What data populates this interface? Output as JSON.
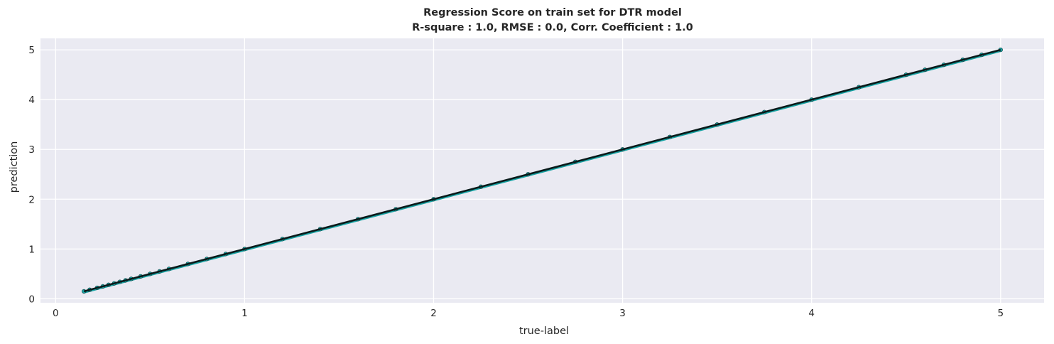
{
  "chart_data": {
    "type": "scatter",
    "title": "Regression Score on train set for DTR model",
    "subtitle": "R-square : 1.0,   RMSE : 0.0,   Corr. Coefficient : 1.0",
    "xlabel": "true-label",
    "ylabel": "prediction",
    "xlim": [
      -0.08,
      5.23
    ],
    "ylim": [
      -0.08,
      5.23
    ],
    "xticks": [
      "0",
      "1",
      "2",
      "3",
      "4",
      "5"
    ],
    "yticks": [
      "0",
      "1",
      "2",
      "3",
      "4",
      "5"
    ],
    "grid": true,
    "series": [
      {
        "kind": "points",
        "color": "#17a2a2",
        "x": [
          0.15,
          0.18,
          0.22,
          0.25,
          0.28,
          0.31,
          0.34,
          0.37,
          0.4,
          0.45,
          0.5,
          0.55,
          0.6,
          0.7,
          0.8,
          0.9,
          1.0,
          1.2,
          1.4,
          1.6,
          1.8,
          2.0,
          2.25,
          2.5,
          2.75,
          3.0,
          3.25,
          3.5,
          3.75,
          4.0,
          4.25,
          4.5,
          4.6,
          4.7,
          4.8,
          4.9,
          5.0
        ],
        "y": [
          0.15,
          0.18,
          0.22,
          0.25,
          0.28,
          0.31,
          0.34,
          0.37,
          0.4,
          0.45,
          0.5,
          0.55,
          0.6,
          0.7,
          0.8,
          0.9,
          1.0,
          1.2,
          1.4,
          1.6,
          1.8,
          2.0,
          2.25,
          2.5,
          2.75,
          3.0,
          3.25,
          3.5,
          3.75,
          4.0,
          4.25,
          4.5,
          4.6,
          4.7,
          4.8,
          4.9,
          5.0
        ]
      },
      {
        "kind": "fit-line",
        "color": "#0a1a1a",
        "x": [
          0.15,
          5.0
        ],
        "y": [
          0.15,
          5.0
        ]
      }
    ],
    "colors": {
      "plot_background": "#eaeaf2",
      "grid": "#ffffff",
      "points": "#17a2a2",
      "fit_line": "#0a1a1a"
    }
  }
}
